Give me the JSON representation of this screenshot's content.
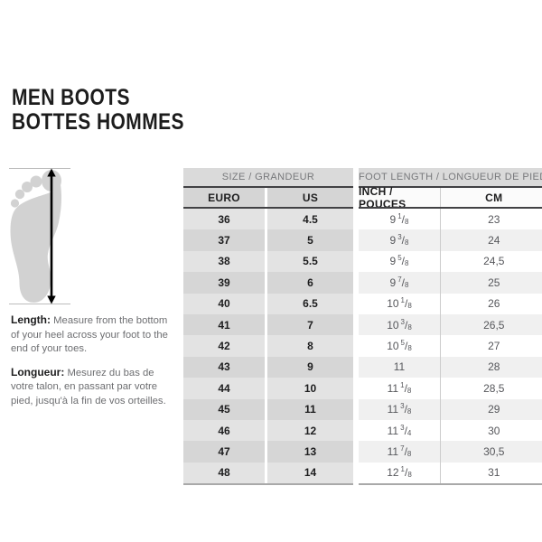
{
  "title": {
    "line1": "MEN BOOTS",
    "line2": "BOTTES HOMMES"
  },
  "instructions": {
    "length_label": "Length:",
    "length_text": "Measure from the bottom of your heel across your foot to the end of your toes.",
    "longueur_label": "Longueur:",
    "longueur_text": "Mesurez du bas de votre talon, en passant par votre pied, jusqu'à la fin de vos orteilles."
  },
  "chart_data": {
    "type": "table",
    "column_groups": [
      {
        "header": "SIZE / GRANDEUR",
        "columns": [
          "EURO",
          "US"
        ]
      },
      {
        "header": "FOOT LENGTH / LONGUEUR DE PIED",
        "columns": [
          "INCH / POUCES",
          "CM"
        ]
      }
    ],
    "columns": [
      "EURO",
      "US",
      "INCH / POUCES",
      "CM"
    ],
    "rows": [
      [
        "36",
        "4.5",
        "9 1/8",
        "23"
      ],
      [
        "37",
        "5",
        "9 3/8",
        "24"
      ],
      [
        "38",
        "5.5",
        "9 5/8",
        "24,5"
      ],
      [
        "39",
        "6",
        "9 7/8",
        "25"
      ],
      [
        "40",
        "6.5",
        "10 1/8",
        "26"
      ],
      [
        "41",
        "7",
        "10 3/8",
        "26,5"
      ],
      [
        "42",
        "8",
        "10 5/8",
        "27"
      ],
      [
        "43",
        "9",
        "11",
        "28"
      ],
      [
        "44",
        "10",
        "11 1/8",
        "28,5"
      ],
      [
        "45",
        "11",
        "11 3/8",
        "29"
      ],
      [
        "46",
        "12",
        "11 3/4",
        "30"
      ],
      [
        "47",
        "13",
        "11 7/8",
        "30,5"
      ],
      [
        "48",
        "14",
        "12 1/8",
        "31"
      ]
    ]
  },
  "icons": {
    "foot_diagram": "foot-sole-silhouette",
    "arrow": "vertical-double-headed-measurement-arrow"
  },
  "colors": {
    "header_bg": "#dadada",
    "header_text": "#77787b",
    "sub_bg_left": "#d5d5d5",
    "sub_bg_right": "#fbfbfb",
    "row_light": "#e3e3e3",
    "row_dark": "#d6d6d6",
    "row_white": "#ffffff",
    "row_offwhite": "#f0f0f0",
    "rule_dark": "#414144",
    "bottom_rule": "#a9a9a9",
    "divider": "#cccccc",
    "text_dark": "#1d1d1e",
    "text_gray": "#6d6e71",
    "text_gray2": "#56575b",
    "foot_fill": "#d2d2d2",
    "dim_line": "#bcbcbc",
    "arrow_color": "#000000"
  }
}
